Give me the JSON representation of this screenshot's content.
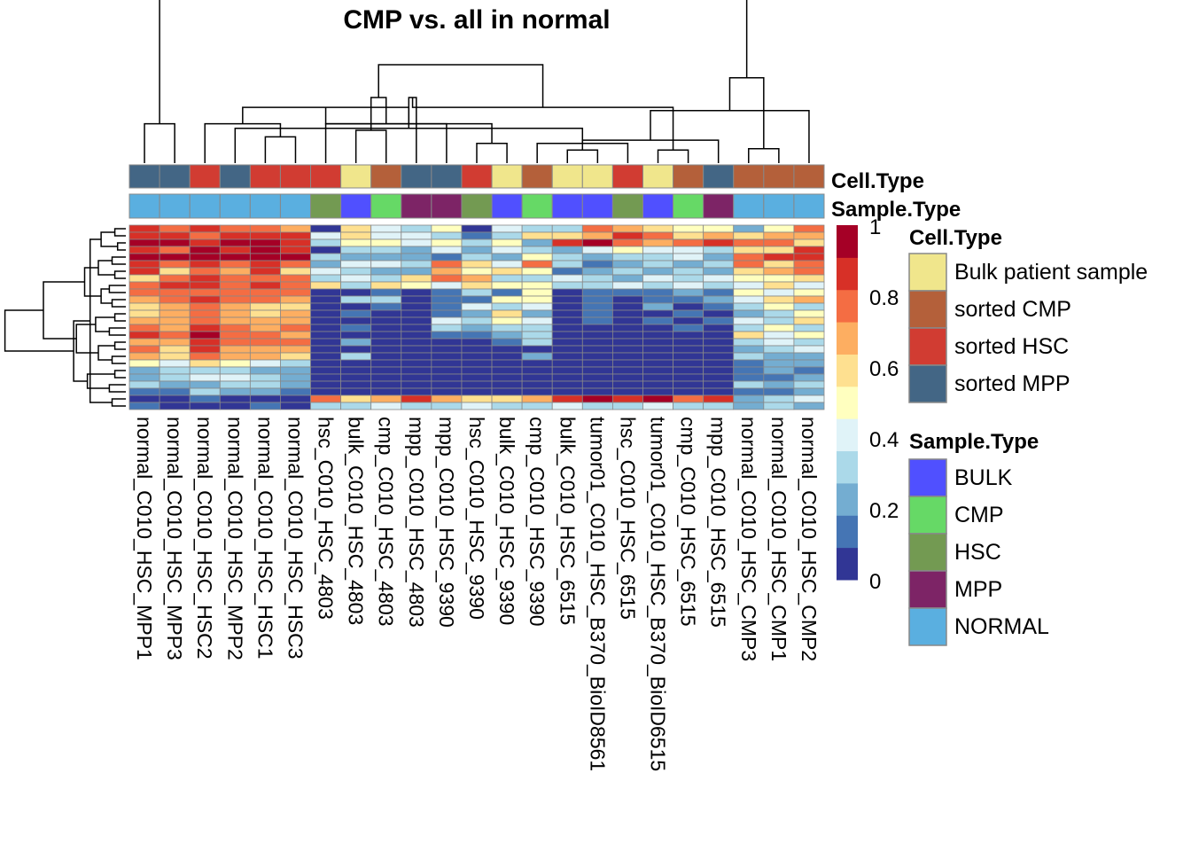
{
  "chart_data": {
    "type": "heatmap",
    "title": "CMP vs. all in normal",
    "columns": [
      "normal_C010_HSC_MPP1",
      "normal_C010_HSC_MPP3",
      "normal_C010_HSC_HSC2",
      "normal_C010_HSC_MPP2",
      "normal_C010_HSC_HSC1",
      "normal_C010_HSC_HSC3",
      "hsc_C010_HSC_4803",
      "bulk_C010_HSC_4803",
      "cmp_C010_HSC_4803",
      "mpp_C010_HSC_4803",
      "mpp_C010_HSC_9390",
      "hsc_C010_HSC_9390",
      "bulk_C010_HSC_9390",
      "cmp_C010_HSC_9390",
      "bulk_C010_HSC_6515",
      "tumor01_C010_HSC_B370_BioID8561",
      "hsc_C010_HSC_6515",
      "tumor01_C010_HSC_B370_BioID6515",
      "cmp_C010_HSC_6515",
      "mpp_C010_HSC_6515",
      "normal_C010_HSC_CMP3",
      "normal_C010_HSC_CMP1",
      "normal_C010_HSC_CMP2"
    ],
    "annotation_labels": [
      "Cell.Type",
      "Sample.Type"
    ],
    "cell_type": [
      "sorted MPP",
      "sorted MPP",
      "sorted HSC",
      "sorted MPP",
      "sorted HSC",
      "sorted HSC",
      "sorted HSC",
      "Bulk patient sample",
      "sorted CMP",
      "sorted MPP",
      "sorted MPP",
      "sorted HSC",
      "Bulk patient sample",
      "sorted CMP",
      "Bulk patient sample",
      "Bulk patient sample",
      "sorted HSC",
      "Bulk patient sample",
      "sorted CMP",
      "sorted MPP",
      "sorted CMP",
      "sorted CMP",
      "sorted CMP"
    ],
    "sample_type": [
      "NORMAL",
      "NORMAL",
      "NORMAL",
      "NORMAL",
      "NORMAL",
      "NORMAL",
      "HSC",
      "BULK",
      "CMP",
      "MPP",
      "MPP",
      "HSC",
      "BULK",
      "CMP",
      "BULK",
      "BULK",
      "HSC",
      "BULK",
      "CMP",
      "MPP",
      "NORMAL",
      "NORMAL",
      "NORMAL"
    ],
    "values": [
      [
        0.9,
        0.8,
        0.9,
        0.8,
        0.8,
        0.7,
        0.05,
        0.6,
        0.4,
        0.3,
        0.5,
        0.05,
        0.4,
        0.3,
        0.3,
        0.8,
        0.7,
        0.6,
        0.5,
        0.5,
        0.2,
        0.5,
        0.8
      ],
      [
        0.9,
        0.9,
        0.8,
        0.9,
        0.9,
        0.9,
        0.4,
        0.6,
        0.4,
        0.4,
        0.3,
        0.15,
        0.3,
        0.6,
        0.6,
        0.7,
        0.9,
        0.8,
        0.6,
        0.7,
        0.6,
        0.7,
        0.7
      ],
      [
        0.95,
        0.95,
        0.9,
        0.95,
        0.95,
        0.9,
        0.3,
        0.5,
        0.5,
        0.4,
        0.5,
        0.3,
        0.5,
        0.2,
        0.9,
        0.95,
        0.8,
        0.7,
        0.8,
        0.9,
        0.8,
        0.8,
        0.6
      ],
      [
        0.85,
        0.8,
        0.95,
        0.9,
        0.95,
        0.9,
        0.05,
        0.3,
        0.3,
        0.2,
        0.4,
        0.25,
        0.4,
        0.3,
        0.2,
        0.4,
        0.5,
        0.4,
        0.4,
        0.3,
        0.6,
        0.6,
        0.85
      ],
      [
        0.95,
        0.95,
        0.95,
        0.95,
        0.95,
        0.95,
        0.3,
        0.2,
        0.2,
        0.2,
        0.1,
        0.3,
        0.2,
        0.5,
        0.3,
        0.2,
        0.3,
        0.3,
        0.4,
        0.2,
        0.8,
        0.9,
        0.9
      ],
      [
        0.9,
        0.8,
        0.9,
        0.8,
        0.85,
        0.75,
        0.25,
        0.4,
        0.4,
        0.3,
        0.75,
        0.6,
        0.4,
        0.8,
        0.3,
        0.1,
        0.2,
        0.3,
        0.2,
        0.3,
        0.8,
        0.6,
        0.8
      ],
      [
        0.85,
        0.6,
        0.8,
        0.7,
        0.85,
        0.6,
        0.4,
        0.3,
        0.2,
        0.2,
        0.7,
        0.5,
        0.6,
        0.5,
        0.1,
        0.2,
        0.3,
        0.2,
        0.3,
        0.2,
        0.6,
        0.7,
        0.8
      ],
      [
        0.55,
        0.8,
        0.85,
        0.8,
        0.8,
        0.8,
        0.3,
        0.4,
        0.3,
        0.6,
        0.8,
        0.65,
        0.3,
        0.3,
        0.4,
        0.3,
        0.2,
        0.4,
        0.3,
        0.4,
        0.5,
        0.5,
        0.6
      ],
      [
        0.8,
        0.85,
        0.9,
        0.8,
        0.85,
        0.8,
        0.6,
        0.35,
        0.6,
        0.5,
        0.4,
        0.6,
        0.5,
        0.5,
        0.3,
        0.3,
        0.4,
        0.3,
        0.4,
        0.3,
        0.4,
        0.6,
        0.4
      ],
      [
        0.8,
        0.8,
        0.8,
        0.8,
        0.8,
        0.8,
        0.05,
        0.05,
        0.1,
        0.05,
        0.1,
        0.3,
        0.1,
        0.5,
        0.05,
        0.1,
        0.1,
        0.1,
        0.2,
        0.1,
        0.5,
        0.4,
        0.5
      ],
      [
        0.7,
        0.8,
        0.85,
        0.75,
        0.75,
        0.7,
        0.05,
        0.35,
        0.3,
        0.05,
        0.1,
        0.1,
        0.5,
        0.5,
        0.05,
        0.1,
        0.05,
        0.1,
        0.1,
        0.2,
        0.4,
        0.6,
        0.7
      ],
      [
        0.6,
        0.7,
        0.75,
        0.7,
        0.6,
        0.6,
        0.05,
        0.05,
        0.1,
        0.05,
        0.1,
        0.4,
        0.3,
        0.4,
        0.05,
        0.1,
        0.05,
        0.2,
        0.05,
        0.1,
        0.3,
        0.5,
        0.3
      ],
      [
        0.6,
        0.7,
        0.8,
        0.7,
        0.6,
        0.7,
        0.05,
        0.1,
        0.05,
        0.05,
        0.1,
        0.2,
        0.6,
        0.2,
        0.05,
        0.1,
        0.05,
        0.05,
        0.1,
        0.05,
        0.2,
        0.3,
        0.5
      ],
      [
        0.7,
        0.7,
        0.8,
        0.7,
        0.7,
        0.7,
        0.05,
        0.05,
        0.05,
        0.05,
        0.4,
        0.3,
        0.5,
        0.4,
        0.05,
        0.1,
        0.05,
        0.1,
        0.05,
        0.1,
        0.4,
        0.3,
        0.6
      ],
      [
        0.8,
        0.7,
        0.9,
        0.75,
        0.7,
        0.75,
        0.05,
        0.1,
        0.05,
        0.05,
        0.3,
        0.2,
        0.3,
        0.3,
        0.05,
        0.05,
        0.05,
        0.05,
        0.1,
        0.05,
        0.3,
        0.5,
        0.3
      ],
      [
        0.85,
        0.75,
        0.95,
        0.8,
        0.75,
        0.7,
        0.05,
        0.05,
        0.05,
        0.05,
        0.1,
        0.1,
        0.2,
        0.3,
        0.05,
        0.05,
        0.05,
        0.05,
        0.05,
        0.05,
        0.6,
        0.4,
        0.5
      ],
      [
        0.7,
        0.7,
        0.85,
        0.75,
        0.75,
        0.75,
        0.05,
        0.2,
        0.05,
        0.05,
        0.05,
        0.05,
        0.1,
        0.3,
        0.05,
        0.05,
        0.05,
        0.05,
        0.05,
        0.05,
        0.3,
        0.4,
        0.3
      ],
      [
        0.8,
        0.6,
        0.9,
        0.7,
        0.7,
        0.7,
        0.05,
        0.05,
        0.05,
        0.05,
        0.05,
        0.05,
        0.05,
        0.05,
        0.05,
        0.05,
        0.05,
        0.05,
        0.05,
        0.05,
        0.2,
        0.3,
        0.4
      ],
      [
        0.7,
        0.55,
        0.75,
        0.65,
        0.7,
        0.6,
        0.05,
        0.3,
        0.05,
        0.05,
        0.05,
        0.05,
        0.05,
        0.2,
        0.05,
        0.05,
        0.05,
        0.05,
        0.05,
        0.05,
        0.3,
        0.2,
        0.2
      ],
      [
        0.5,
        0.45,
        0.55,
        0.5,
        0.4,
        0.35,
        0.05,
        0.05,
        0.05,
        0.05,
        0.05,
        0.05,
        0.05,
        0.05,
        0.05,
        0.05,
        0.05,
        0.05,
        0.05,
        0.05,
        0.1,
        0.2,
        0.2
      ],
      [
        0.2,
        0.3,
        0.35,
        0.3,
        0.2,
        0.2,
        0.05,
        0.05,
        0.05,
        0.05,
        0.05,
        0.05,
        0.05,
        0.05,
        0.05,
        0.05,
        0.05,
        0.05,
        0.05,
        0.05,
        0.1,
        0.2,
        0.1
      ],
      [
        0.2,
        0.35,
        0.4,
        0.45,
        0.3,
        0.25,
        0.05,
        0.05,
        0.05,
        0.05,
        0.05,
        0.05,
        0.05,
        0.05,
        0.05,
        0.05,
        0.05,
        0.05,
        0.05,
        0.05,
        0.1,
        0.1,
        0.2
      ],
      [
        0.35,
        0.2,
        0.25,
        0.3,
        0.3,
        0.2,
        0.05,
        0.05,
        0.05,
        0.05,
        0.05,
        0.05,
        0.05,
        0.05,
        0.05,
        0.05,
        0.05,
        0.05,
        0.05,
        0.05,
        0.3,
        0.2,
        0.3
      ],
      [
        0.1,
        0.15,
        0.3,
        0.2,
        0.2,
        0.15,
        0.05,
        0.05,
        0.05,
        0.05,
        0.05,
        0.05,
        0.05,
        0.05,
        0.05,
        0.05,
        0.05,
        0.05,
        0.05,
        0.05,
        0.1,
        0.1,
        0.2
      ],
      [
        0.05,
        0.05,
        0.1,
        0.05,
        0.05,
        0.05,
        0.8,
        0.6,
        0.7,
        0.9,
        0.7,
        0.6,
        0.55,
        0.7,
        0.9,
        0.95,
        0.85,
        0.95,
        0.8,
        0.9,
        0.2,
        0.3,
        0.4
      ],
      [
        0.1,
        0.05,
        0.05,
        0.05,
        0.1,
        0.05,
        0.35,
        0.3,
        0.4,
        0.35,
        0.3,
        0.4,
        0.35,
        0.35,
        0.4,
        0.35,
        0.3,
        0.4,
        0.35,
        0.3,
        0.2,
        0.3,
        0.2
      ]
    ],
    "value_range": [
      0,
      1
    ],
    "colorbar_ticks": [
      "1",
      "0.8",
      "0.6",
      "0.4",
      "0.2",
      "0"
    ],
    "colorbar_colors": [
      "#313695",
      "#4575b4",
      "#74add1",
      "#abd9e9",
      "#e0f3f8",
      "#ffffbf",
      "#fee090",
      "#fdae61",
      "#f46d43",
      "#d73027",
      "#a50026"
    ],
    "legend": {
      "cell_type": {
        "title": "Cell.Type",
        "items": [
          {
            "label": "Bulk patient sample",
            "color": "#f0e68c"
          },
          {
            "label": "sorted CMP",
            "color": "#b4603a"
          },
          {
            "label": "sorted HSC",
            "color": "#d13c32"
          },
          {
            "label": "sorted MPP",
            "color": "#436685"
          }
        ]
      },
      "sample_type": {
        "title": "Sample.Type",
        "items": [
          {
            "label": "BULK",
            "color": "#5050ff"
          },
          {
            "label": "CMP",
            "color": "#66d966"
          },
          {
            "label": "HSC",
            "color": "#739a52"
          },
          {
            "label": "MPP",
            "color": "#7d2466"
          },
          {
            "label": "NORMAL",
            "color": "#5aafe0"
          }
        ]
      }
    }
  }
}
